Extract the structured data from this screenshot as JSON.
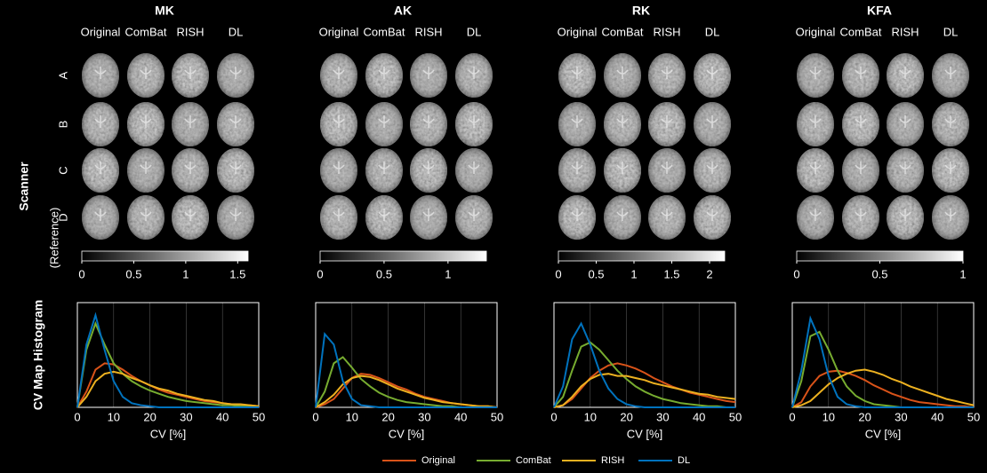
{
  "image_panel": {
    "column_labels": [
      "Original",
      "ComBat",
      "RISH",
      "DL"
    ],
    "row_labels": [
      "A",
      "B",
      "C",
      "D"
    ],
    "row_axis_label": "Scanner",
    "reference_label": "(Reference)"
  },
  "histogram_y_label": "CV Map Histogram",
  "colorbars": [
    {
      "lim": [
        0,
        1.6
      ],
      "ticks": [
        0,
        0.5,
        1,
        1.5
      ]
    },
    {
      "lim": [
        0,
        1.3
      ],
      "ticks": [
        0,
        0.5,
        1
      ]
    },
    {
      "lim": [
        0,
        2.2
      ],
      "ticks": [
        0,
        0.5,
        1,
        1.5,
        2
      ]
    },
    {
      "lim": [
        0,
        1
      ],
      "ticks": [
        0,
        0.5,
        1
      ]
    }
  ],
  "chart_data": [
    {
      "type": "line",
      "title": "MK",
      "xlabel": "CV [%]",
      "grid": true,
      "xlim": [
        0,
        50
      ],
      "xticks": [
        0,
        10,
        20,
        30,
        40,
        50
      ],
      "ylim": [
        0,
        1
      ],
      "x": [
        0,
        2.5,
        5,
        7.5,
        10,
        12.5,
        15,
        17.5,
        20,
        22.5,
        25,
        27.5,
        30,
        32.5,
        35,
        37.5,
        40,
        42.5,
        45,
        47.5,
        50
      ],
      "series": [
        {
          "name": "Original",
          "color": "#d95319",
          "values": [
            0,
            0.15,
            0.36,
            0.42,
            0.41,
            0.36,
            0.3,
            0.25,
            0.21,
            0.17,
            0.14,
            0.12,
            0.1,
            0.08,
            0.06,
            0.05,
            0.04,
            0.03,
            0.02,
            0.02,
            0.01
          ]
        },
        {
          "name": "ComBat",
          "color": "#77ac30",
          "values": [
            0,
            0.55,
            0.8,
            0.6,
            0.42,
            0.32,
            0.25,
            0.2,
            0.16,
            0.13,
            0.1,
            0.08,
            0.06,
            0.05,
            0.04,
            0.03,
            0.02,
            0.02,
            0.01,
            0.01,
            0.01
          ]
        },
        {
          "name": "RISH",
          "color": "#edb120",
          "values": [
            0,
            0.1,
            0.25,
            0.32,
            0.34,
            0.32,
            0.28,
            0.25,
            0.21,
            0.18,
            0.16,
            0.13,
            0.11,
            0.09,
            0.07,
            0.06,
            0.04,
            0.03,
            0.03,
            0.02,
            0.01
          ]
        },
        {
          "name": "DL",
          "color": "#0072bd",
          "values": [
            0,
            0.6,
            0.88,
            0.55,
            0.25,
            0.1,
            0.04,
            0.02,
            0.01,
            0,
            0,
            0,
            0,
            0,
            0,
            0,
            0,
            0,
            0,
            0,
            0
          ]
        }
      ]
    },
    {
      "type": "line",
      "title": "AK",
      "xlabel": "CV [%]",
      "grid": true,
      "xlim": [
        0,
        50
      ],
      "xticks": [
        0,
        10,
        20,
        30,
        40,
        50
      ],
      "ylim": [
        0,
        1
      ],
      "x": [
        0,
        2.5,
        5,
        7.5,
        10,
        12.5,
        15,
        17.5,
        20,
        22.5,
        25,
        27.5,
        30,
        32.5,
        35,
        37.5,
        40,
        42.5,
        45,
        47.5,
        50
      ],
      "series": [
        {
          "name": "Original",
          "color": "#d95319",
          "values": [
            0,
            0.03,
            0.08,
            0.18,
            0.28,
            0.32,
            0.31,
            0.28,
            0.24,
            0.2,
            0.17,
            0.13,
            0.1,
            0.08,
            0.06,
            0.04,
            0.03,
            0.02,
            0.01,
            0.01,
            0
          ]
        },
        {
          "name": "ComBat",
          "color": "#77ac30",
          "values": [
            0,
            0.15,
            0.42,
            0.48,
            0.38,
            0.27,
            0.2,
            0.14,
            0.1,
            0.07,
            0.05,
            0.04,
            0.03,
            0.02,
            0.01,
            0.01,
            0,
            0,
            0,
            0,
            0
          ]
        },
        {
          "name": "RISH",
          "color": "#edb120",
          "values": [
            0,
            0.05,
            0.12,
            0.22,
            0.28,
            0.3,
            0.29,
            0.26,
            0.22,
            0.18,
            0.15,
            0.12,
            0.09,
            0.07,
            0.05,
            0.04,
            0.03,
            0.02,
            0.01,
            0.01,
            0
          ]
        },
        {
          "name": "DL",
          "color": "#0072bd",
          "values": [
            0,
            0.7,
            0.6,
            0.25,
            0.08,
            0.02,
            0.01,
            0,
            0,
            0,
            0,
            0,
            0,
            0,
            0,
            0,
            0,
            0,
            0,
            0,
            0
          ]
        }
      ]
    },
    {
      "type": "line",
      "title": "RK",
      "xlabel": "CV [%]",
      "grid": true,
      "xlim": [
        0,
        50
      ],
      "xticks": [
        0,
        10,
        20,
        30,
        40,
        50
      ],
      "ylim": [
        0,
        1
      ],
      "x": [
        0,
        2.5,
        5,
        7.5,
        10,
        12.5,
        15,
        17.5,
        20,
        22.5,
        25,
        27.5,
        30,
        32.5,
        35,
        37.5,
        40,
        42.5,
        45,
        47.5,
        50
      ],
      "series": [
        {
          "name": "Original",
          "color": "#d95319",
          "values": [
            0,
            0.02,
            0.08,
            0.18,
            0.28,
            0.35,
            0.4,
            0.42,
            0.4,
            0.37,
            0.33,
            0.28,
            0.24,
            0.2,
            0.17,
            0.14,
            0.12,
            0.1,
            0.08,
            0.06,
            0.05
          ]
        },
        {
          "name": "ComBat",
          "color": "#77ac30",
          "values": [
            0,
            0.1,
            0.35,
            0.58,
            0.62,
            0.55,
            0.45,
            0.35,
            0.27,
            0.2,
            0.15,
            0.11,
            0.08,
            0.06,
            0.04,
            0.03,
            0.02,
            0.01,
            0.01,
            0,
            0
          ]
        },
        {
          "name": "RISH",
          "color": "#edb120",
          "values": [
            0,
            0.02,
            0.1,
            0.2,
            0.27,
            0.31,
            0.32,
            0.3,
            0.3,
            0.28,
            0.26,
            0.23,
            0.21,
            0.19,
            0.17,
            0.15,
            0.13,
            0.12,
            0.1,
            0.09,
            0.08
          ]
        },
        {
          "name": "DL",
          "color": "#0072bd",
          "values": [
            0,
            0.2,
            0.65,
            0.8,
            0.6,
            0.35,
            0.18,
            0.08,
            0.03,
            0.01,
            0,
            0,
            0,
            0,
            0,
            0,
            0,
            0,
            0,
            0,
            0
          ]
        }
      ]
    },
    {
      "type": "line",
      "title": "KFA",
      "xlabel": "CV [%]",
      "grid": true,
      "xlim": [
        0,
        50
      ],
      "xticks": [
        0,
        10,
        20,
        30,
        40,
        50
      ],
      "ylim": [
        0,
        1
      ],
      "x": [
        0,
        2.5,
        5,
        7.5,
        10,
        12.5,
        15,
        17.5,
        20,
        22.5,
        25,
        27.5,
        30,
        32.5,
        35,
        37.5,
        40,
        42.5,
        45,
        47.5,
        50
      ],
      "series": [
        {
          "name": "Original",
          "color": "#d95319",
          "values": [
            0,
            0.05,
            0.2,
            0.3,
            0.34,
            0.35,
            0.33,
            0.3,
            0.26,
            0.21,
            0.17,
            0.13,
            0.1,
            0.07,
            0.05,
            0.04,
            0.03,
            0.02,
            0.01,
            0.01,
            0
          ]
        },
        {
          "name": "ComBat",
          "color": "#77ac30",
          "values": [
            0,
            0.25,
            0.68,
            0.72,
            0.55,
            0.35,
            0.2,
            0.11,
            0.06,
            0.03,
            0.02,
            0.01,
            0,
            0,
            0,
            0,
            0,
            0,
            0,
            0,
            0
          ]
        },
        {
          "name": "RISH",
          "color": "#edb120",
          "values": [
            0,
            0.02,
            0.06,
            0.14,
            0.22,
            0.28,
            0.32,
            0.35,
            0.36,
            0.34,
            0.31,
            0.27,
            0.24,
            0.2,
            0.17,
            0.14,
            0.11,
            0.08,
            0.06,
            0.04,
            0.02
          ]
        },
        {
          "name": "DL",
          "color": "#0072bd",
          "values": [
            0,
            0.35,
            0.85,
            0.65,
            0.3,
            0.1,
            0.03,
            0.01,
            0,
            0,
            0,
            0,
            0,
            0,
            0,
            0,
            0,
            0,
            0,
            0,
            0
          ]
        }
      ]
    }
  ]
}
